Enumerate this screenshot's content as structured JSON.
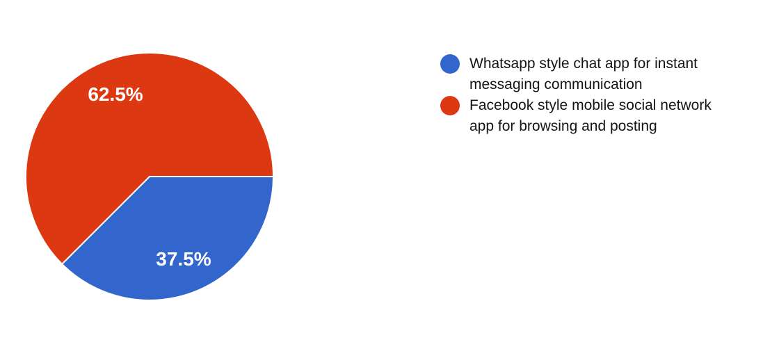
{
  "chart_data": {
    "type": "pie",
    "legend_position": "right",
    "direction": "clockwise",
    "start_angle_clock_deg": 90,
    "background_color": "#FFFFFF",
    "slice_label_color": "#FFFFFF",
    "slice_border_color": "#FFFFFF",
    "series": [
      {
        "label": "Whatsapp style chat app for instant messaging communication",
        "value": 37.5,
        "percent_label": "37.5%",
        "color": "#3366CC"
      },
      {
        "label": "Facebook style mobile social network app for browsing and posting",
        "value": 62.5,
        "percent_label": "62.5%",
        "color": "#DC3912"
      }
    ]
  }
}
